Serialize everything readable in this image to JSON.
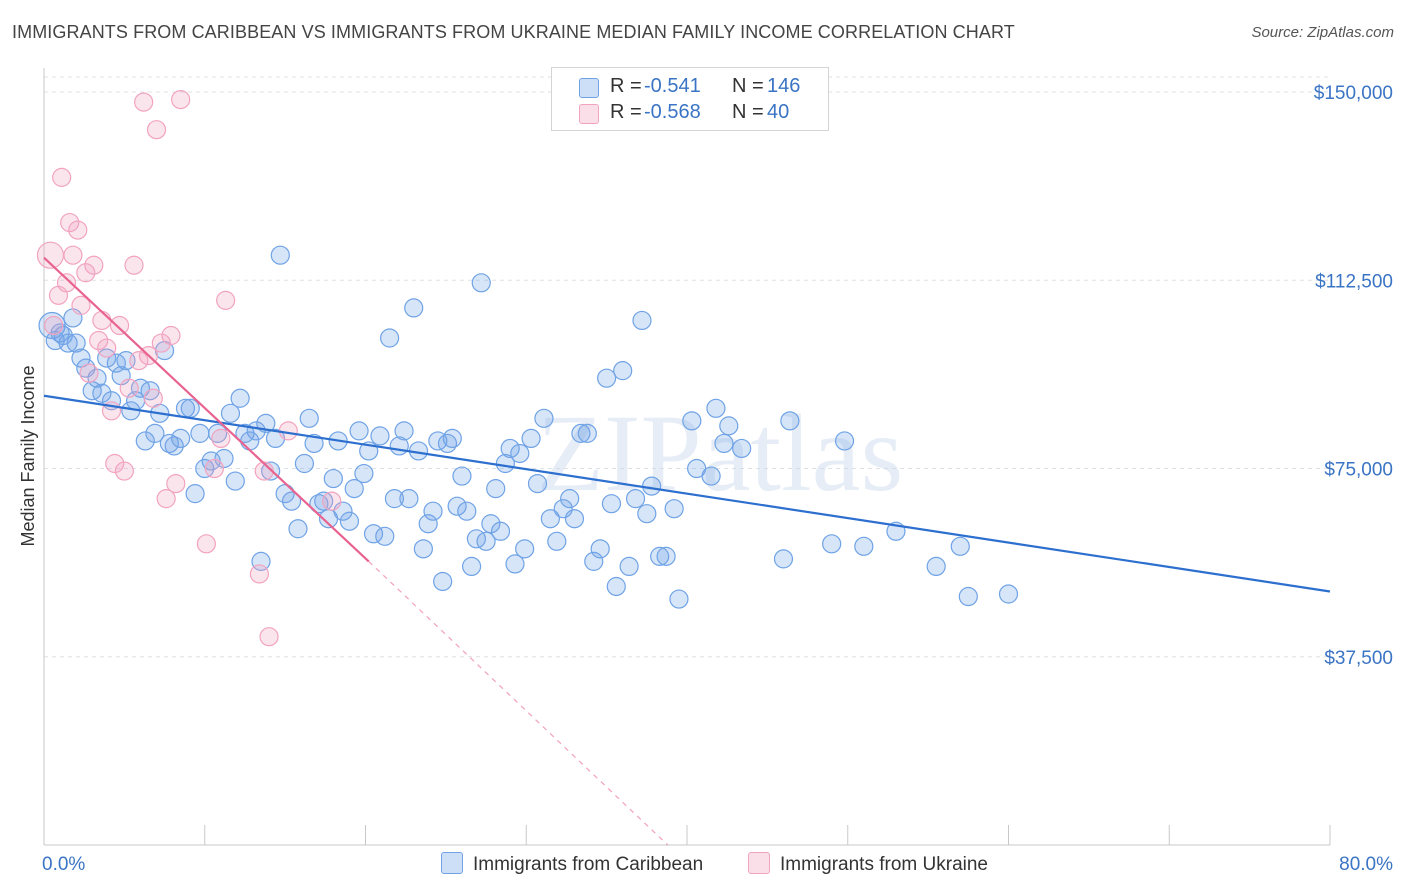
{
  "title": "IMMIGRANTS FROM CARIBBEAN VS IMMIGRANTS FROM UKRAINE MEDIAN FAMILY INCOME CORRELATION CHART",
  "source": "Source: ZipAtlas.com",
  "watermark": "ZIPatlas",
  "colors": {
    "blue": "#6fa3e6",
    "blue_line": "#2c6fcf",
    "pink": "#f2a3bf",
    "pink_line": "#e8638f",
    "tick_text": "#3a74c4",
    "grid": "#dde1e6"
  },
  "legend": {
    "rows": [
      {
        "r_label": "R =",
        "r_value": "-0.541",
        "n_label": "N =",
        "n_value": "146"
      },
      {
        "r_label": "R =",
        "r_value": "-0.568",
        "n_label": "N =",
        "n_value": "40"
      }
    ]
  },
  "chart_data": {
    "type": "scatter",
    "xlabel": "",
    "ylabel": "Median Family Income",
    "xlim": [
      0,
      80
    ],
    "ylim": [
      0,
      153000
    ],
    "x_tick_labels": [
      "0.0%",
      "80.0%"
    ],
    "y_ticks": [
      37500,
      75000,
      112500,
      150000
    ],
    "y_tick_labels": [
      "$37,500",
      "$75,000",
      "$112,500",
      "$150,000"
    ],
    "grid": "horizontal dashed",
    "legend_position": "top-center",
    "series": [
      {
        "name": "Immigrants from Caribbean",
        "color": "#6fa3e6",
        "trend": {
          "x": [
            0,
            80
          ],
          "y": [
            89500,
            50500
          ]
        },
        "points": [
          [
            0.5,
            103500
          ],
          [
            0.7,
            100500
          ],
          [
            1.0,
            102000
          ],
          [
            1.2,
            101500
          ],
          [
            1.5,
            100000
          ],
          [
            1.8,
            105000
          ],
          [
            2.0,
            100000
          ],
          [
            2.3,
            97000
          ],
          [
            2.6,
            95000
          ],
          [
            3.0,
            90500
          ],
          [
            3.3,
            93000
          ],
          [
            3.6,
            90000
          ],
          [
            3.9,
            97000
          ],
          [
            4.2,
            88500
          ],
          [
            4.5,
            96000
          ],
          [
            4.8,
            93500
          ],
          [
            5.1,
            96500
          ],
          [
            5.4,
            86500
          ],
          [
            5.7,
            88500
          ],
          [
            6.0,
            91000
          ],
          [
            6.3,
            80500
          ],
          [
            6.6,
            90500
          ],
          [
            6.9,
            82000
          ],
          [
            7.2,
            86000
          ],
          [
            7.5,
            98500
          ],
          [
            7.8,
            80000
          ],
          [
            8.1,
            79500
          ],
          [
            8.5,
            81000
          ],
          [
            8.8,
            87000
          ],
          [
            9.1,
            87000
          ],
          [
            9.4,
            70000
          ],
          [
            9.7,
            82000
          ],
          [
            10.0,
            75000
          ],
          [
            10.4,
            76500
          ],
          [
            10.8,
            82000
          ],
          [
            11.2,
            77000
          ],
          [
            11.6,
            86000
          ],
          [
            11.9,
            72500
          ],
          [
            12.2,
            89000
          ],
          [
            12.5,
            82000
          ],
          [
            12.8,
            80500
          ],
          [
            13.2,
            82500
          ],
          [
            13.5,
            56500
          ],
          [
            13.8,
            84000
          ],
          [
            14.1,
            74500
          ],
          [
            14.4,
            81000
          ],
          [
            14.7,
            117500
          ],
          [
            15.0,
            70000
          ],
          [
            15.4,
            68500
          ],
          [
            15.8,
            63000
          ],
          [
            16.2,
            76000
          ],
          [
            16.5,
            85000
          ],
          [
            16.8,
            80000
          ],
          [
            17.1,
            68000
          ],
          [
            17.4,
            68500
          ],
          [
            17.7,
            65000
          ],
          [
            18.0,
            73000
          ],
          [
            18.3,
            80500
          ],
          [
            18.6,
            66500
          ],
          [
            19.0,
            64500
          ],
          [
            19.3,
            71000
          ],
          [
            19.6,
            82500
          ],
          [
            19.9,
            74000
          ],
          [
            20.2,
            78500
          ],
          [
            20.5,
            62000
          ],
          [
            20.9,
            81500
          ],
          [
            21.2,
            61500
          ],
          [
            21.5,
            101000
          ],
          [
            21.8,
            69000
          ],
          [
            22.1,
            79500
          ],
          [
            22.4,
            82500
          ],
          [
            22.7,
            69000
          ],
          [
            23.0,
            107000
          ],
          [
            23.3,
            78500
          ],
          [
            23.6,
            59000
          ],
          [
            23.9,
            64000
          ],
          [
            24.2,
            66500
          ],
          [
            24.5,
            80500
          ],
          [
            24.8,
            52500
          ],
          [
            25.1,
            80000
          ],
          [
            25.4,
            81000
          ],
          [
            25.7,
            67500
          ],
          [
            26.0,
            73500
          ],
          [
            26.3,
            66500
          ],
          [
            26.6,
            55500
          ],
          [
            26.9,
            61000
          ],
          [
            27.2,
            112000
          ],
          [
            27.5,
            60500
          ],
          [
            27.8,
            64000
          ],
          [
            28.1,
            71000
          ],
          [
            28.4,
            62500
          ],
          [
            28.7,
            76000
          ],
          [
            29.0,
            79000
          ],
          [
            29.3,
            56000
          ],
          [
            29.6,
            78000
          ],
          [
            29.9,
            59000
          ],
          [
            30.3,
            81000
          ],
          [
            30.7,
            72000
          ],
          [
            31.1,
            85000
          ],
          [
            31.5,
            65000
          ],
          [
            31.9,
            60500
          ],
          [
            32.3,
            67000
          ],
          [
            32.7,
            69000
          ],
          [
            33.0,
            65000
          ],
          [
            33.4,
            82000
          ],
          [
            33.8,
            82000
          ],
          [
            34.2,
            56500
          ],
          [
            34.6,
            59000
          ],
          [
            35.0,
            93000
          ],
          [
            35.3,
            68000
          ],
          [
            35.6,
            51500
          ],
          [
            36.0,
            94500
          ],
          [
            36.4,
            55500
          ],
          [
            36.8,
            69000
          ],
          [
            37.2,
            104500
          ],
          [
            37.5,
            66000
          ],
          [
            37.8,
            71500
          ],
          [
            38.3,
            57500
          ],
          [
            38.7,
            57500
          ],
          [
            39.2,
            67000
          ],
          [
            39.5,
            49000
          ],
          [
            40.3,
            84500
          ],
          [
            40.6,
            75000
          ],
          [
            41.5,
            73500
          ],
          [
            41.8,
            87000
          ],
          [
            42.3,
            80000
          ],
          [
            42.6,
            83500
          ],
          [
            43.4,
            79000
          ],
          [
            46.0,
            57000
          ],
          [
            46.4,
            84500
          ],
          [
            49.0,
            60000
          ],
          [
            49.8,
            80500
          ],
          [
            51.0,
            59500
          ],
          [
            53.0,
            62500
          ],
          [
            55.5,
            55500
          ],
          [
            57.0,
            59500
          ],
          [
            57.5,
            49500
          ],
          [
            60.0,
            50000
          ]
        ]
      },
      {
        "name": "Immigrants from Ukraine",
        "color": "#f2a3bf",
        "trend": {
          "x": [
            0,
            20.2
          ],
          "y": [
            117000,
            56500
          ],
          "dashed_extension_to": [
            38.8,
            0
          ]
        },
        "points": [
          [
            0.4,
            117500
          ],
          [
            0.6,
            103500
          ],
          [
            0.9,
            109500
          ],
          [
            1.1,
            133000
          ],
          [
            1.4,
            112000
          ],
          [
            1.6,
            124000
          ],
          [
            1.8,
            117500
          ],
          [
            2.1,
            122500
          ],
          [
            2.3,
            107500
          ],
          [
            2.6,
            114000
          ],
          [
            2.8,
            94000
          ],
          [
            3.1,
            115500
          ],
          [
            3.4,
            100500
          ],
          [
            3.6,
            104500
          ],
          [
            3.9,
            99000
          ],
          [
            4.2,
            86500
          ],
          [
            4.4,
            76000
          ],
          [
            4.7,
            103500
          ],
          [
            5.0,
            74500
          ],
          [
            5.3,
            91000
          ],
          [
            5.6,
            115500
          ],
          [
            5.9,
            96500
          ],
          [
            6.2,
            148000
          ],
          [
            6.5,
            97500
          ],
          [
            6.8,
            89000
          ],
          [
            7.0,
            142500
          ],
          [
            7.3,
            100000
          ],
          [
            7.6,
            69000
          ],
          [
            7.9,
            101500
          ],
          [
            8.2,
            72000
          ],
          [
            8.5,
            148500
          ],
          [
            10.1,
            60000
          ],
          [
            10.6,
            75000
          ],
          [
            11.0,
            81000
          ],
          [
            11.3,
            108500
          ],
          [
            13.4,
            54000
          ],
          [
            13.7,
            74500
          ],
          [
            14.0,
            41500
          ],
          [
            15.2,
            82500
          ],
          [
            17.9,
            68500
          ]
        ]
      }
    ]
  },
  "bottom_legend": {
    "items": [
      {
        "label": "Immigrants from Caribbean"
      },
      {
        "label": "Immigrants from Ukraine"
      }
    ]
  }
}
